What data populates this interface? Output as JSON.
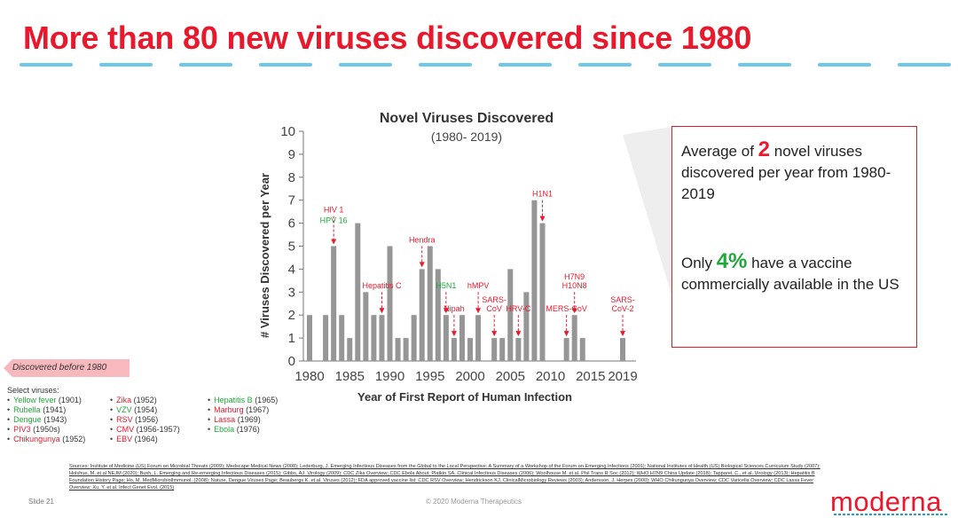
{
  "page": {
    "title": "More than 80 new viruses discovered since 1980",
    "slide_number": "Slide 21",
    "copyright": "© 2020 Moderna Therapeutics",
    "brand": "moderna",
    "sources_label": "Sources:",
    "sources_text": "Institute of Medicine (US) Forum on Microbial Threats (2009); Medscape Medical News (2008); Lederburg, J. Emerging Infectious Diseases from the Global to the Local Perspective: A Summary of a Workshop of the Forum on Emerging Infections (2001); National Institutes of Health (US) Biological Sciences Curriculum Study (2007); Holshue, M. et al NEJM (2020); Bush, L. Emerging and Re-emerging Infectious Diseases (2015); Gibbs, AJ. Virology (2009); CDC Zika Overview; CDC Ebola About; Platkin SA. Clinical Infectious Diseases (2006); Woolhouse M. et al. Phil Trans R Soc (2012); WHO H7N9 China Update (2018); Tapparel, C., et al. Virology (2013); Hepatitis B Foundation History Page; Ho, M. MedMicrobiolImmunol. (2008); Nature, Dengue Viruses Page; Beaubergs K. et al. Viruses (2012); FDA approved vaccine list; CDC RSV Overview; Hendrickson KJ. ClinicalMicrobiology Reviews (2003); Andersson, J. Herpes (2000); WHO Chikungunya Overview; CDC Varicella Overview; CDC Lassa Fever Overview; Xu, Y. et al. Infect Genet Evol. (2015)"
  },
  "callout": {
    "line1_pre": "Average of",
    "line1_big": "2",
    "line1_post": "novel viruses discovered per year from 1980-2019",
    "line2_pre": "Only",
    "line2_big": "4%",
    "line2_post": "have a vaccine commercially available in the US",
    "border_color": "#e8192c"
  },
  "before_1980": {
    "tag": "Discovered before 1980",
    "select_label": "Select viruses:",
    "columns": [
      [
        {
          "name": "Yellow fever",
          "year": "(1901)",
          "color": "green"
        },
        {
          "name": "Rubella",
          "year": "(1941)",
          "color": "green"
        },
        {
          "name": "Dengue",
          "year": "(1943)",
          "color": "green"
        },
        {
          "name": "PIV3",
          "year": "(1950s)",
          "color": "red"
        },
        {
          "name": "Chikungunya",
          "year": "(1952)",
          "color": "red"
        }
      ],
      [
        {
          "name": "Zika",
          "year": "(1952)",
          "color": "red"
        },
        {
          "name": "VZV",
          "year": "(1954)",
          "color": "green"
        },
        {
          "name": "RSV",
          "year": "(1956)",
          "color": "red"
        },
        {
          "name": "CMV",
          "year": "(1956-1957)",
          "color": "red"
        },
        {
          "name": "EBV",
          "year": "(1964)",
          "color": "red"
        }
      ],
      [
        {
          "name": "Hepatitis B",
          "year": "(1965)",
          "color": "green"
        },
        {
          "name": "Marburg",
          "year": "(1967)",
          "color": "red"
        },
        {
          "name": "Lassa",
          "year": "(1969)",
          "color": "red"
        },
        {
          "name": "Ebola",
          "year": "(1976)",
          "color": "green"
        }
      ]
    ]
  },
  "chart_data": {
    "type": "bar",
    "title": "Novel Viruses Discovered",
    "subtitle": "(1980- 2019)",
    "xlabel": "Year of First Report of Human Infection",
    "ylabel": "# Viruses Discovered per Year",
    "ylim": [
      0,
      10
    ],
    "xlim": [
      1980,
      2019
    ],
    "y_ticks": [
      0,
      1,
      2,
      3,
      4,
      5,
      6,
      7,
      8,
      9,
      10
    ],
    "x_tick_labels": [
      "1980",
      "1985",
      "1990",
      "1995",
      "2000",
      "2005",
      "2010",
      "2015",
      "2019"
    ],
    "bar_color": "#969696",
    "points": [
      {
        "x": 1980,
        "y": 2
      },
      {
        "x": 1982,
        "y": 2
      },
      {
        "x": 1983,
        "y": 5
      },
      {
        "x": 1984,
        "y": 2
      },
      {
        "x": 1985,
        "y": 1
      },
      {
        "x": 1986,
        "y": 6
      },
      {
        "x": 1987,
        "y": 3
      },
      {
        "x": 1988,
        "y": 2
      },
      {
        "x": 1989,
        "y": 2
      },
      {
        "x": 1990,
        "y": 5
      },
      {
        "x": 1991,
        "y": 1
      },
      {
        "x": 1992,
        "y": 1
      },
      {
        "x": 1993,
        "y": 2
      },
      {
        "x": 1994,
        "y": 4
      },
      {
        "x": 1995,
        "y": 5
      },
      {
        "x": 1996,
        "y": 4
      },
      {
        "x": 1997,
        "y": 2
      },
      {
        "x": 1998,
        "y": 1
      },
      {
        "x": 1999,
        "y": 2
      },
      {
        "x": 2000,
        "y": 1
      },
      {
        "x": 2001,
        "y": 2
      },
      {
        "x": 2003,
        "y": 1
      },
      {
        "x": 2004,
        "y": 1
      },
      {
        "x": 2005,
        "y": 4
      },
      {
        "x": 2006,
        "y": 1
      },
      {
        "x": 2007,
        "y": 3
      },
      {
        "x": 2008,
        "y": 7
      },
      {
        "x": 2009,
        "y": 6
      },
      {
        "x": 2012,
        "y": 1
      },
      {
        "x": 2013,
        "y": 2
      },
      {
        "x": 2014,
        "y": 1
      },
      {
        "x": 2019,
        "y": 1
      }
    ],
    "annotations": [
      {
        "lines": [
          "HIV 1"
        ],
        "color": "#e8192c",
        "x": 1983
      },
      {
        "lines": [
          "HPV 16"
        ],
        "color": "#20a83a",
        "x": 1983
      },
      {
        "lines": [
          "Hepatitis C"
        ],
        "color": "#e8192c",
        "x": 1989
      },
      {
        "lines": [
          "Hendra"
        ],
        "color": "#e8192c",
        "x": 1994
      },
      {
        "lines": [
          "H5N1"
        ],
        "color": "#20a83a",
        "x": 1997
      },
      {
        "lines": [
          "Nipah"
        ],
        "color": "#e8192c",
        "x": 1998
      },
      {
        "lines": [
          "hMPV"
        ],
        "color": "#e8192c",
        "x": 2001
      },
      {
        "lines": [
          "SARS-",
          "CoV"
        ],
        "color": "#e8192c",
        "x": 2003
      },
      {
        "lines": [
          "HRV-C"
        ],
        "color": "#e8192c",
        "x": 2006
      },
      {
        "lines": [
          "H1N1"
        ],
        "color": "#e8192c",
        "x": 2009
      },
      {
        "lines": [
          "MERS-CoV"
        ],
        "color": "#e8192c",
        "x": 2012
      },
      {
        "lines": [
          "H7N9",
          "H10N8"
        ],
        "color": "#e8192c",
        "x": 2013
      },
      {
        "lines": [
          "SARS-",
          "CoV-2"
        ],
        "color": "#e8192c",
        "x": 2019
      }
    ],
    "grid": false,
    "legend": "none"
  }
}
